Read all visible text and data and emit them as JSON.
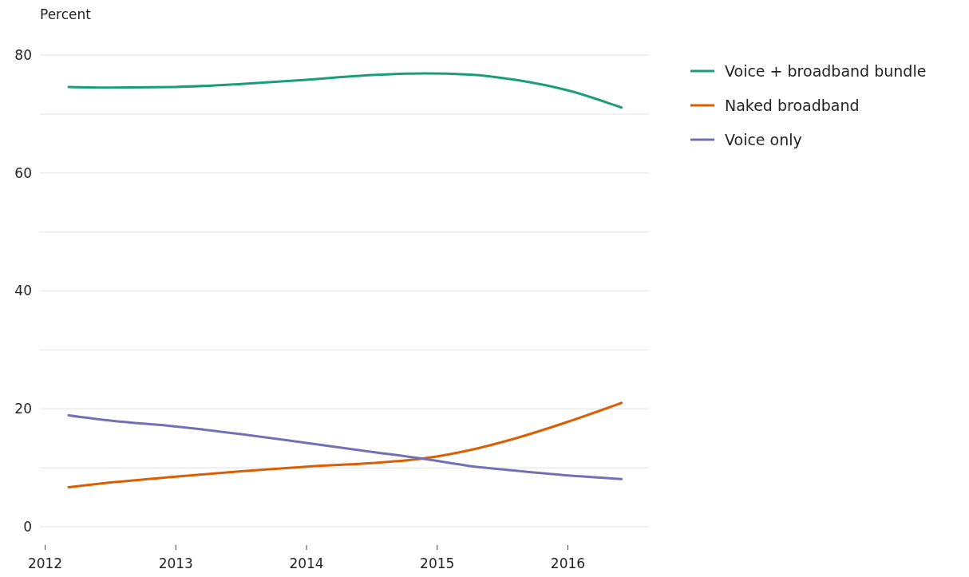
{
  "chart_data": {
    "type": "line",
    "ylabel": "Percent",
    "xlim": [
      2011.96,
      2016.62
    ],
    "xticks": [
      2012,
      2013,
      2014,
      2015,
      2016
    ],
    "ylim": [
      0,
      80
    ],
    "yticks": [
      0,
      {
        "value": 10,
        "label": null
      },
      20,
      {
        "value": 30,
        "label": null
      },
      40,
      {
        "value": 50,
        "label": null
      },
      60,
      {
        "value": 70,
        "label": null
      },
      80
    ],
    "grid": "y",
    "legend": "top right",
    "line_style": "solid",
    "marker": "none",
    "x": [
      2012.18,
      2012.5,
      2013,
      2013.5,
      2014,
      2014.5,
      2014.9,
      2015.25,
      2015.6,
      2016,
      2016.41
    ],
    "series": [
      {
        "name": "Voice + broadband bundle",
        "color": "#1b9e77",
        "values": [
          74.6,
          74.5,
          74.6,
          75.1,
          75.8,
          76.6,
          76.9,
          76.7,
          75.8,
          74.0,
          71.1
        ]
      },
      {
        "name": "Naked broadband",
        "color": "#d95f02",
        "values": [
          6.7,
          7.5,
          8.5,
          9.4,
          10.2,
          10.8,
          11.6,
          13.0,
          15.0,
          17.8,
          21.0
        ]
      },
      {
        "name": "Voice only",
        "color": "#7570b3",
        "values": [
          18.9,
          18.0,
          17.0,
          15.7,
          14.2,
          12.7,
          11.5,
          10.3,
          9.5,
          8.7,
          8.1
        ]
      }
    ]
  }
}
